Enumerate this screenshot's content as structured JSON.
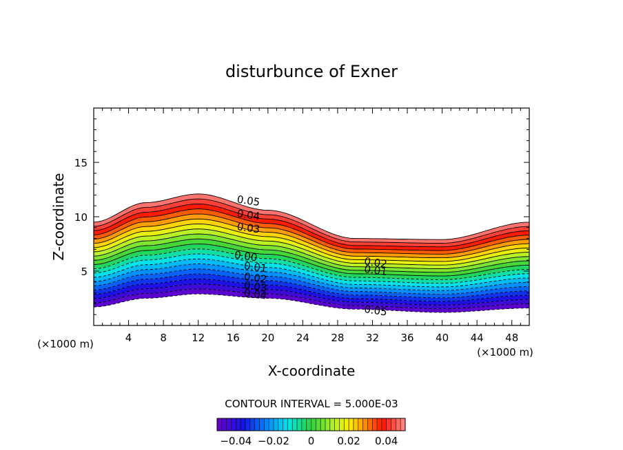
{
  "chart_data": {
    "type": "contour",
    "title": "disturbunce of Exner",
    "xlabel": "X-coordinate",
    "ylabel": "Z-coordinate",
    "x_unit_left": "(×1000 m)",
    "x_unit_right": "(×1000 m)",
    "xlim": [
      0,
      50
    ],
    "ylim": [
      0,
      20
    ],
    "xticks": [
      4,
      8,
      12,
      16,
      20,
      24,
      28,
      32,
      36,
      40,
      44,
      48
    ],
    "yticks": [
      5,
      10,
      15
    ],
    "contour_interval_label": "CONTOUR INTERVAL = 5.000E-03",
    "levels": [
      -0.05,
      -0.045,
      -0.04,
      -0.035,
      -0.03,
      -0.025,
      -0.02,
      -0.015,
      -0.01,
      -0.005,
      0.0,
      0.005,
      0.01,
      0.015,
      0.02,
      0.025,
      0.03,
      0.035,
      0.04,
      0.045,
      0.05
    ],
    "field_bottom_z": [
      1.7,
      2.5,
      2.9,
      2.5,
      1.5,
      1.2,
      1.6
    ],
    "field_top_z": [
      9.5,
      11.3,
      12.1,
      10.6,
      8.0,
      7.9,
      9.5
    ],
    "field_profile_x": [
      0,
      6,
      12,
      20,
      30,
      40,
      50
    ],
    "contour_labels": [
      {
        "text": "0.05",
        "x": 16.4,
        "z": 11.3
      },
      {
        "text": "0.04",
        "x": 16.4,
        "z": 10.0
      },
      {
        "text": "0.03",
        "x": 16.4,
        "z": 8.8
      },
      {
        "text": "0.00",
        "x": 16.1,
        "z": 6.2
      },
      {
        "text": "0.01",
        "x": 17.2,
        "z": 5.2
      },
      {
        "text": "0.02",
        "x": 17.2,
        "z": 4.2
      },
      {
        "text": "0.03",
        "x": 17.2,
        "z": 3.4
      },
      {
        "text": "0.04",
        "x": 17.2,
        "z": 2.7
      },
      {
        "text": "0.02",
        "x": 31.0,
        "z": 5.6
      },
      {
        "text": "0.01",
        "x": 31.0,
        "z": 4.9
      },
      {
        "text": "0.05",
        "x": 31.0,
        "z": 1.2
      }
    ],
    "colorbar": {
      "min": -0.05,
      "max": 0.05,
      "tick_values": [
        -0.04,
        -0.02,
        0,
        0.02,
        0.04
      ],
      "tick_labels": [
        "−0.04",
        "−0.02",
        "0",
        "0.02",
        "0.04"
      ]
    },
    "colors": {
      "top": "#ff8080",
      "bottom": "#6a00c8",
      "frame": "#000000"
    }
  }
}
